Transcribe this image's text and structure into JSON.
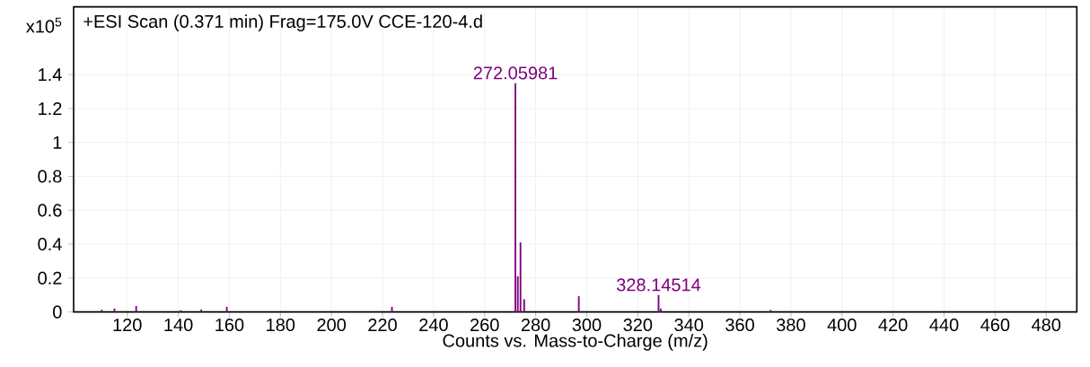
{
  "chart_data": {
    "type": "bar",
    "title": "+ESI Scan (0.371 min) Frag=175.0V CCE-120-4.d",
    "xlabel": "Counts vs. Mass-to-Charge (m/z)",
    "ylabel": "x10$^{5}$",
    "x": [
      110,
      115,
      123.5,
      141,
      149,
      159,
      223.7,
      272.06,
      273,
      274.06,
      275.5,
      296.9,
      328.15,
      329,
      372
    ],
    "values": [
      0.013,
      0.02,
      0.035,
      0.01,
      0.015,
      0.03,
      0.03,
      1.35,
      0.21,
      0.41,
      0.075,
      0.093,
      0.1,
      0.02,
      0.012
    ],
    "color": "#800080",
    "annotations": [
      {
        "text": "272.05981",
        "x": 272.06,
        "y": 1.35
      },
      {
        "text": "328.14514",
        "x": 328.15,
        "y": 0.1
      }
    ],
    "xlim": [
      99,
      492
    ],
    "ylim": [
      0,
      1.8
    ],
    "xticks": [
      120,
      140,
      160,
      180,
      200,
      220,
      240,
      260,
      280,
      300,
      320,
      340,
      360,
      380,
      400,
      420,
      440,
      460,
      480
    ],
    "yticks": [
      0,
      0.2,
      0.4,
      0.6,
      0.8,
      1,
      1.2,
      1.4
    ],
    "grid": true
  }
}
